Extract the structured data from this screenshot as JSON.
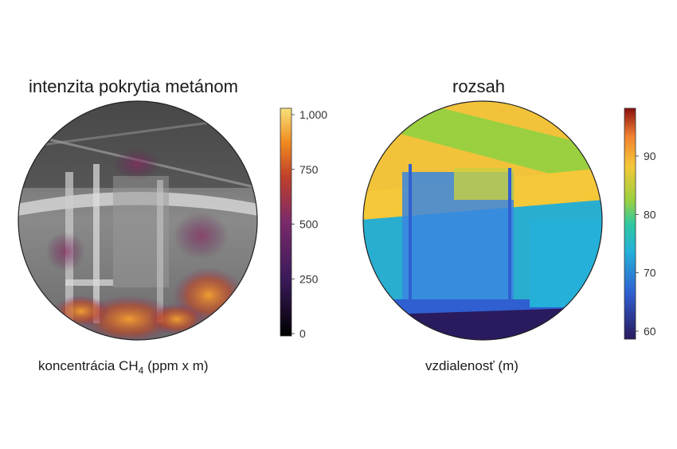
{
  "left": {
    "title": "intenzita pokrytia metánom",
    "caption_prefix": "koncentrácia CH",
    "caption_subscript": "4",
    "caption_suffix": " (ppm x m)",
    "colorbar_ticks": [
      "0",
      "250",
      "500",
      "750",
      "1,000"
    ],
    "colors": [
      "#000000",
      "#3a1a5a",
      "#7a2a6a",
      "#c0402a",
      "#f08a20",
      "#f6e27a"
    ]
  },
  "right": {
    "title": "rozsah",
    "caption": "vzdialenosť (m)",
    "colorbar_ticks": [
      "60",
      "70",
      "80",
      "90"
    ],
    "colors": [
      "#2a1a5e",
      "#2f5fd0",
      "#24b0d8",
      "#30c8a0",
      "#9ad040",
      "#f4c838",
      "#f08030",
      "#8a1010"
    ]
  }
}
